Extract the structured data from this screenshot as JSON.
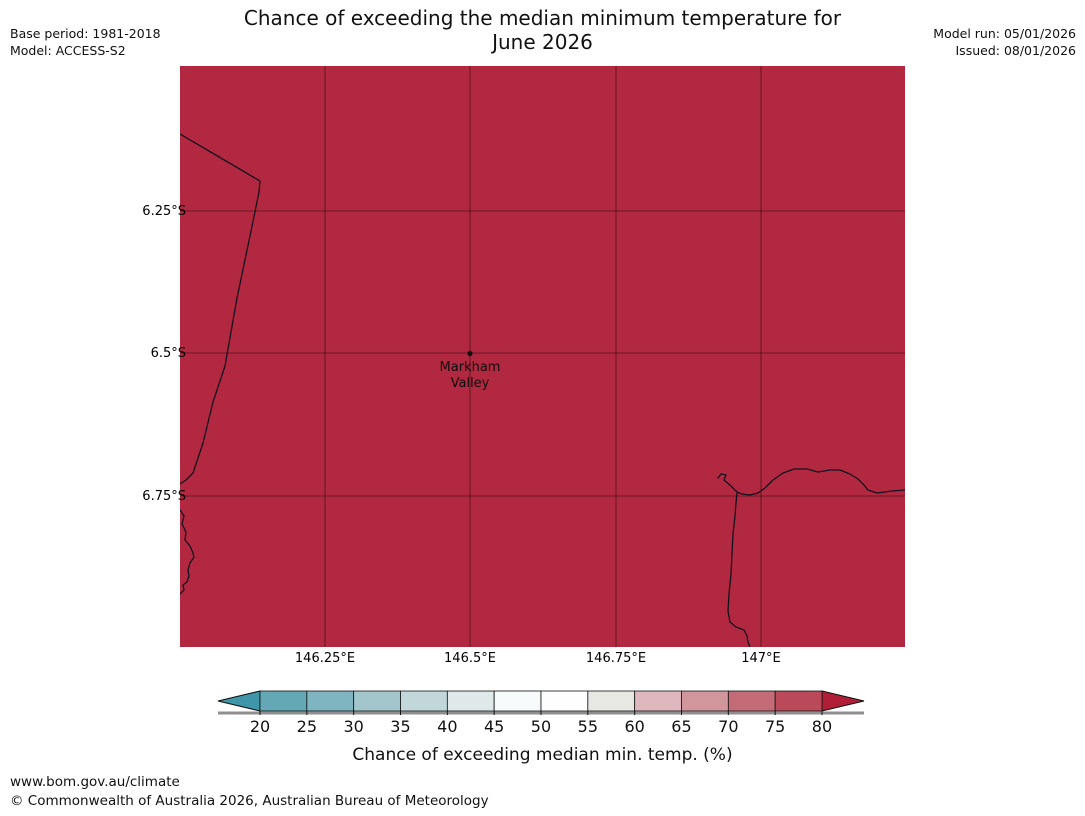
{
  "header": {
    "title_line1": "Chance of exceeding the median minimum temperature for",
    "title_line2": "June 2026",
    "base_period": "Base period: 1981-2018",
    "model": "Model: ACCESS-S2",
    "model_run": "Model run: 05/01/2026",
    "issued": "Issued: 08/01/2026"
  },
  "map": {
    "fill_color": "#b22840",
    "coastline_color": "#12121f",
    "marker": {
      "label_line1": "Markham",
      "label_line2": "Valley"
    },
    "lat_labels": [
      "6.25°S",
      "6.5°S",
      "6.75°S"
    ],
    "lon_labels": [
      "146.25°E",
      "146.5°E",
      "146.75°E",
      "147°E"
    ]
  },
  "colorbar": {
    "title": "Chance of exceeding median min. temp. (%)",
    "ticks": [
      "20",
      "25",
      "30",
      "35",
      "40",
      "45",
      "50",
      "55",
      "60",
      "65",
      "70",
      "75",
      "80"
    ],
    "segment_colors": [
      "#64a8b6",
      "#7fb5c0",
      "#a2c6cc",
      "#c2d7d9",
      "#dfe9ea",
      "#f7fafa",
      "#fefefe",
      "#e7e7e4",
      "#ddb7bd",
      "#d1959c",
      "#c36c77",
      "#ba4a59"
    ],
    "left_arrow_color": "#3e96a8",
    "right_arrow_color": "#b01f35"
  },
  "footer": {
    "url": "www.bom.gov.au/climate",
    "copyright": "© Commonwealth of Australia 2026, Australian Bureau of Meteorology"
  },
  "chart_data": {
    "type": "heatmap",
    "title": "Chance of exceeding the median minimum temperature for June 2026",
    "variable": "Chance of exceeding median min. temp. (%)",
    "units": "%",
    "model": "ACCESS-S2",
    "base_period": "1981-2018",
    "model_run": "05/01/2026",
    "issued": "08/01/2026",
    "location_marker": "Markham Valley",
    "lon_ticks": [
      "146.25°E",
      "146.5°E",
      "146.75°E",
      "147°E"
    ],
    "lat_ticks": [
      "6.25°S",
      "6.5°S",
      "6.75°S"
    ],
    "map_extent_est": {
      "lon": [
        146.0,
        147.24
      ],
      "lat": [
        -6.0,
        -7.02
      ]
    },
    "colorbar_ticks": [
      20,
      25,
      30,
      35,
      40,
      45,
      50,
      55,
      60,
      65,
      70,
      75,
      80
    ],
    "colorbar_range": [
      20,
      80
    ],
    "map_value": "> 80 (entire visible region in highest off-scale category)",
    "grid": true,
    "legend_position": "bottom"
  }
}
